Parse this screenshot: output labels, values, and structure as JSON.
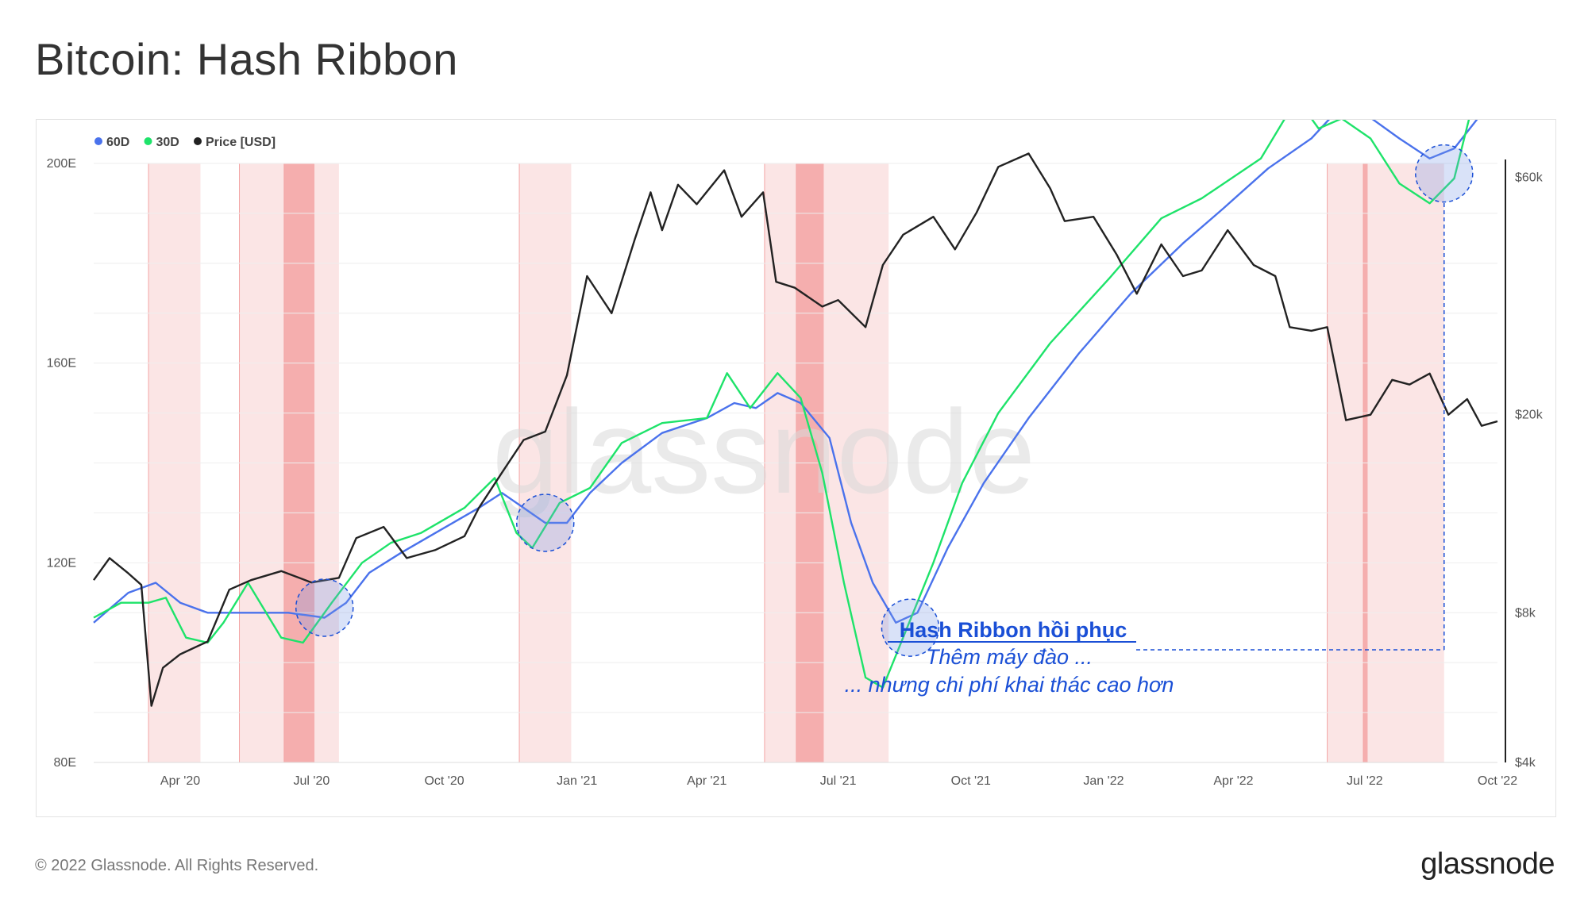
{
  "title": "Bitcoin: Hash Ribbon",
  "footer": {
    "copyright": "© 2022 Glassnode. All Rights Reserved.",
    "logo": "glassnode"
  },
  "watermark": "glassnode",
  "colors": {
    "ma60": "#4a72ec",
    "ma30": "#1ee36a",
    "price": "#222222",
    "band": "#fadcdc",
    "band_dark": "#f3a4a4",
    "annotation": "#1a4fd6",
    "circle_fill": "rgba(120,150,230,0.28)"
  },
  "chart_data": {
    "type": "line",
    "legend": [
      {
        "label": "60D",
        "color": "#4a72ec"
      },
      {
        "label": "30D",
        "color": "#1ee36a"
      },
      {
        "label": "Price [USD]",
        "color": "#222222"
      }
    ],
    "x_range": [
      "2020-02-01",
      "2022-10-01"
    ],
    "x_ticks": [
      {
        "date": "2020-04-01",
        "label": "Apr '20"
      },
      {
        "date": "2020-07-01",
        "label": "Jul '20"
      },
      {
        "date": "2020-10-01",
        "label": "Oct '20"
      },
      {
        "date": "2021-01-01",
        "label": "Jan '21"
      },
      {
        "date": "2021-04-01",
        "label": "Apr '21"
      },
      {
        "date": "2021-07-01",
        "label": "Jul '21"
      },
      {
        "date": "2021-10-01",
        "label": "Oct '21"
      },
      {
        "date": "2022-01-01",
        "label": "Jan '22"
      },
      {
        "date": "2022-04-01",
        "label": "Apr '22"
      },
      {
        "date": "2022-07-01",
        "label": "Jul '22"
      },
      {
        "date": "2022-10-01",
        "label": "Oct '22"
      }
    ],
    "y_left": {
      "label_unit": "E",
      "ylim": [
        80,
        200
      ],
      "ticks": [
        {
          "value": 80,
          "label": "80E"
        },
        {
          "value": 120,
          "label": "120E"
        },
        {
          "value": 160,
          "label": "160E"
        },
        {
          "value": 200,
          "label": "200E"
        }
      ]
    },
    "y_right": {
      "scale": "log",
      "ylim": [
        4000,
        64000
      ],
      "ticks": [
        {
          "value": 4000,
          "label": "$4k"
        },
        {
          "value": 8000,
          "label": "$8k"
        },
        {
          "value": 20000,
          "label": "$20k"
        },
        {
          "value": 60000,
          "label": "$60k"
        }
      ]
    },
    "bands": [
      {
        "start": "2020-03-10",
        "end": "2020-04-15",
        "dark": false
      },
      {
        "start": "2020-05-12",
        "end": "2020-07-20",
        "dark": false
      },
      {
        "start": "2020-06-12",
        "end": "2020-07-03",
        "dark": true
      },
      {
        "start": "2020-11-22",
        "end": "2020-12-28",
        "dark": false
      },
      {
        "start": "2021-05-11",
        "end": "2021-08-05",
        "dark": false
      },
      {
        "start": "2021-06-02",
        "end": "2021-06-21",
        "dark": true
      },
      {
        "start": "2022-06-05",
        "end": "2022-08-25",
        "dark": false
      },
      {
        "start": "2022-06-30",
        "end": "2022-07-03",
        "dark": true
      }
    ],
    "series": [
      {
        "name": "60D",
        "axis": "left",
        "color": "#4a72ec",
        "points": [
          [
            "2020-02-01",
            108
          ],
          [
            "2020-02-25",
            114
          ],
          [
            "2020-03-15",
            116
          ],
          [
            "2020-04-01",
            112
          ],
          [
            "2020-04-20",
            110
          ],
          [
            "2020-05-15",
            110
          ],
          [
            "2020-06-15",
            110
          ],
          [
            "2020-07-10",
            109
          ],
          [
            "2020-07-25",
            112
          ],
          [
            "2020-08-10",
            118
          ],
          [
            "2020-09-01",
            122
          ],
          [
            "2020-09-25",
            126
          ],
          [
            "2020-10-25",
            131
          ],
          [
            "2020-11-10",
            134
          ],
          [
            "2020-11-25",
            131
          ],
          [
            "2020-12-10",
            128
          ],
          [
            "2020-12-25",
            128
          ],
          [
            "2021-01-10",
            134
          ],
          [
            "2021-02-01",
            140
          ],
          [
            "2021-03-01",
            146
          ],
          [
            "2021-04-01",
            149
          ],
          [
            "2021-04-20",
            152
          ],
          [
            "2021-05-05",
            151
          ],
          [
            "2021-05-20",
            154
          ],
          [
            "2021-06-05",
            152
          ],
          [
            "2021-06-25",
            145
          ],
          [
            "2021-07-10",
            128
          ],
          [
            "2021-07-25",
            116
          ],
          [
            "2021-08-10",
            108
          ],
          [
            "2021-08-25",
            110
          ],
          [
            "2021-09-15",
            123
          ],
          [
            "2021-10-10",
            136
          ],
          [
            "2021-11-10",
            149
          ],
          [
            "2021-12-15",
            162
          ],
          [
            "2022-01-20",
            174
          ],
          [
            "2022-02-25",
            184
          ],
          [
            "2022-03-25",
            191
          ],
          [
            "2022-04-25",
            199
          ],
          [
            "2022-05-25",
            205
          ],
          [
            "2022-06-10",
            210
          ],
          [
            "2022-07-01",
            210
          ],
          [
            "2022-07-25",
            205
          ],
          [
            "2022-08-15",
            201
          ],
          [
            "2022-09-01",
            203
          ],
          [
            "2022-09-20",
            210
          ],
          [
            "2022-10-01",
            215
          ]
        ]
      },
      {
        "name": "30D",
        "axis": "left",
        "color": "#1ee36a",
        "points": [
          [
            "2020-02-01",
            109
          ],
          [
            "2020-02-20",
            112
          ],
          [
            "2020-03-10",
            112
          ],
          [
            "2020-03-22",
            113
          ],
          [
            "2020-04-05",
            105
          ],
          [
            "2020-04-20",
            104
          ],
          [
            "2020-05-01",
            108
          ],
          [
            "2020-05-18",
            116
          ],
          [
            "2020-06-10",
            105
          ],
          [
            "2020-06-25",
            104
          ],
          [
            "2020-07-15",
            112
          ],
          [
            "2020-08-05",
            120
          ],
          [
            "2020-08-25",
            124
          ],
          [
            "2020-09-15",
            126
          ],
          [
            "2020-10-15",
            131
          ],
          [
            "2020-11-05",
            137
          ],
          [
            "2020-11-20",
            126
          ],
          [
            "2020-12-01",
            123
          ],
          [
            "2020-12-20",
            132
          ],
          [
            "2021-01-10",
            135
          ],
          [
            "2021-02-01",
            144
          ],
          [
            "2021-03-01",
            148
          ],
          [
            "2021-04-01",
            149
          ],
          [
            "2021-04-15",
            158
          ],
          [
            "2021-05-01",
            151
          ],
          [
            "2021-05-20",
            158
          ],
          [
            "2021-06-05",
            153
          ],
          [
            "2021-06-20",
            138
          ],
          [
            "2021-07-05",
            116
          ],
          [
            "2021-07-20",
            97
          ],
          [
            "2021-08-01",
            95
          ],
          [
            "2021-08-15",
            105
          ],
          [
            "2021-09-05",
            120
          ],
          [
            "2021-09-25",
            136
          ],
          [
            "2021-10-20",
            150
          ],
          [
            "2021-11-25",
            164
          ],
          [
            "2022-01-05",
            177
          ],
          [
            "2022-02-10",
            189
          ],
          [
            "2022-03-10",
            193
          ],
          [
            "2022-04-20",
            201
          ],
          [
            "2022-05-15",
            213
          ],
          [
            "2022-05-30",
            207
          ],
          [
            "2022-06-15",
            209
          ],
          [
            "2022-07-05",
            205
          ],
          [
            "2022-07-25",
            196
          ],
          [
            "2022-08-15",
            192
          ],
          [
            "2022-09-01",
            197
          ],
          [
            "2022-09-20",
            219
          ],
          [
            "2022-10-01",
            224
          ]
        ]
      },
      {
        "name": "Price [USD]",
        "axis": "right",
        "color": "#222222",
        "points": [
          [
            "2020-02-01",
            9300
          ],
          [
            "2020-02-12",
            10300
          ],
          [
            "2020-02-25",
            9600
          ],
          [
            "2020-03-05",
            9100
          ],
          [
            "2020-03-12",
            5200
          ],
          [
            "2020-03-20",
            6200
          ],
          [
            "2020-04-01",
            6600
          ],
          [
            "2020-04-20",
            7000
          ],
          [
            "2020-05-05",
            8900
          ],
          [
            "2020-05-20",
            9300
          ],
          [
            "2020-06-10",
            9700
          ],
          [
            "2020-07-01",
            9200
          ],
          [
            "2020-07-20",
            9400
          ],
          [
            "2020-08-01",
            11300
          ],
          [
            "2020-08-20",
            11900
          ],
          [
            "2020-09-05",
            10300
          ],
          [
            "2020-09-25",
            10700
          ],
          [
            "2020-10-15",
            11400
          ],
          [
            "2020-10-25",
            13000
          ],
          [
            "2020-11-10",
            15300
          ],
          [
            "2020-11-25",
            17800
          ],
          [
            "2020-12-10",
            18500
          ],
          [
            "2020-12-25",
            24000
          ],
          [
            "2021-01-08",
            38000
          ],
          [
            "2021-01-25",
            32000
          ],
          [
            "2021-02-10",
            45000
          ],
          [
            "2021-02-21",
            56000
          ],
          [
            "2021-03-01",
            47000
          ],
          [
            "2021-03-12",
            58000
          ],
          [
            "2021-03-25",
            53000
          ],
          [
            "2021-04-13",
            62000
          ],
          [
            "2021-04-25",
            50000
          ],
          [
            "2021-05-10",
            56000
          ],
          [
            "2021-05-19",
            37000
          ],
          [
            "2021-06-01",
            36000
          ],
          [
            "2021-06-20",
            33000
          ],
          [
            "2021-07-01",
            34000
          ],
          [
            "2021-07-20",
            30000
          ],
          [
            "2021-08-01",
            40000
          ],
          [
            "2021-08-15",
            46000
          ],
          [
            "2021-09-05",
            50000
          ],
          [
            "2021-09-20",
            43000
          ],
          [
            "2021-10-05",
            51000
          ],
          [
            "2021-10-20",
            63000
          ],
          [
            "2021-11-10",
            67000
          ],
          [
            "2021-11-25",
            57000
          ],
          [
            "2021-12-05",
            49000
          ],
          [
            "2021-12-25",
            50000
          ],
          [
            "2022-01-10",
            42000
          ],
          [
            "2022-01-24",
            35000
          ],
          [
            "2022-02-10",
            44000
          ],
          [
            "2022-02-25",
            38000
          ],
          [
            "2022-03-10",
            39000
          ],
          [
            "2022-03-28",
            47000
          ],
          [
            "2022-04-15",
            40000
          ],
          [
            "2022-04-30",
            38000
          ],
          [
            "2022-05-10",
            30000
          ],
          [
            "2022-05-25",
            29500
          ],
          [
            "2022-06-05",
            30000
          ],
          [
            "2022-06-18",
            19500
          ],
          [
            "2022-07-05",
            20000
          ],
          [
            "2022-07-20",
            23500
          ],
          [
            "2022-08-01",
            23000
          ],
          [
            "2022-08-15",
            24200
          ],
          [
            "2022-08-28",
            20000
          ],
          [
            "2022-09-10",
            21500
          ],
          [
            "2022-09-20",
            19000
          ],
          [
            "2022-10-01",
            19400
          ]
        ]
      }
    ],
    "highlight_circles": [
      {
        "date": "2020-07-10",
        "value": 111
      },
      {
        "date": "2020-12-10",
        "value": 128
      },
      {
        "date": "2021-08-20",
        "value": 107
      },
      {
        "date": "2022-08-25",
        "value": 198
      }
    ],
    "annotation": {
      "title": "Hash Ribbon hồi phục",
      "lines": [
        "Thêm máy đào ...",
        "... nhưng chi phí khai thác cao hơn"
      ],
      "pointer_date": "2022-08-25"
    }
  }
}
